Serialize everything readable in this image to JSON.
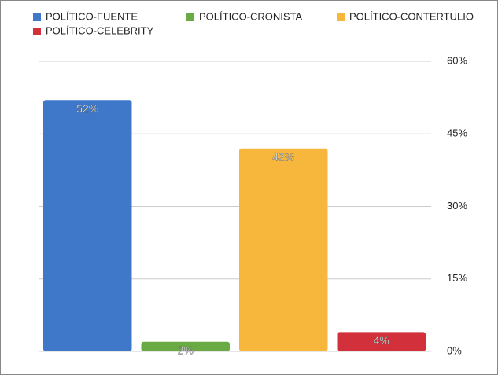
{
  "chart_data": {
    "type": "bar",
    "series": [
      {
        "name": "POLÍTICO-FUENTE",
        "color": "#3f78c9",
        "values": [
          52
        ],
        "value_labels": [
          "52%"
        ]
      },
      {
        "name": "POLÍTICO-CRONISTA",
        "color": "#6aaa45",
        "values": [
          2
        ],
        "value_labels": [
          "2%"
        ]
      },
      {
        "name": "POLÍTICO-CONTERTULIO",
        "color": "#f7b73c",
        "values": [
          42
        ],
        "value_labels": [
          "42%"
        ]
      },
      {
        "name": "POLÍTICO-CELEBRITY",
        "color": "#d2303a",
        "values": [
          4
        ],
        "value_labels": [
          "4%"
        ]
      }
    ],
    "ylim": [
      0,
      60
    ],
    "yticks": [
      {
        "value": 0,
        "label": "0%"
      },
      {
        "value": 15,
        "label": "15%"
      },
      {
        "value": 30,
        "label": "30%"
      },
      {
        "value": 45,
        "label": "45%"
      },
      {
        "value": 60,
        "label": "60%"
      }
    ],
    "grid": true,
    "legend": "top"
  }
}
